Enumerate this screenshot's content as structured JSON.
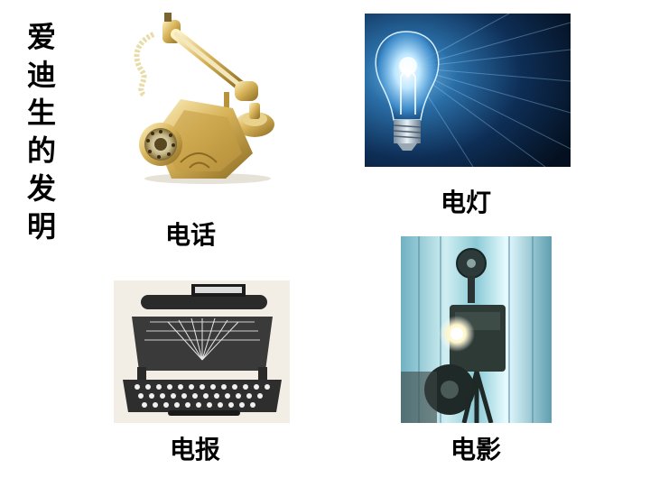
{
  "title_chars": [
    "爱",
    "迪",
    "生",
    "的",
    "发",
    "明"
  ],
  "inventions": {
    "telephone": {
      "label": "电话",
      "icon": "telephone-icon"
    },
    "light_bulb": {
      "label": "电灯",
      "icon": "light-bulb-icon"
    },
    "telegraph": {
      "label": "电报",
      "icon": "typewriter-icon"
    },
    "film": {
      "label": "电影",
      "icon": "film-projector-icon"
    }
  },
  "colors": {
    "background": "#ffffff",
    "text": "#000000",
    "brass": "#d8b45a",
    "bulb_glow": "#bfe8ff",
    "night_blue": "#0b1e3a"
  }
}
